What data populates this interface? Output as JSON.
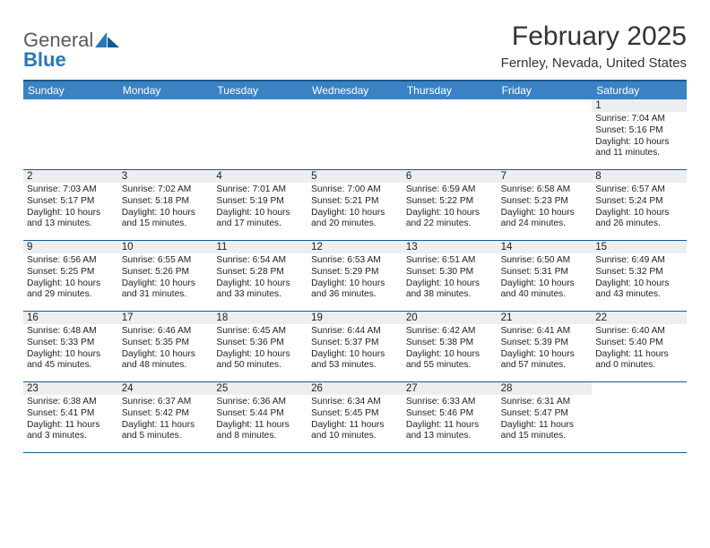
{
  "brand": {
    "name_part1": "General",
    "name_part2": "Blue"
  },
  "header": {
    "month_title": "February 2025",
    "location": "Fernley, Nevada, United States"
  },
  "colors": {
    "header_bar": "#3b82c4",
    "header_border": "#1a5a8e",
    "daynum_bg": "#eceeef",
    "text": "#222222",
    "brand_gray": "#5b5b5b",
    "brand_blue": "#2a77b8",
    "background": "#ffffff"
  },
  "weekdays": [
    "Sunday",
    "Monday",
    "Tuesday",
    "Wednesday",
    "Thursday",
    "Friday",
    "Saturday"
  ],
  "calendar": {
    "type": "table",
    "weeks": [
      [
        {
          "day": null
        },
        {
          "day": null
        },
        {
          "day": null
        },
        {
          "day": null
        },
        {
          "day": null
        },
        {
          "day": null
        },
        {
          "day": 1,
          "sunrise": "7:04 AM",
          "sunset": "5:16 PM",
          "daylight": "10 hours and 11 minutes."
        }
      ],
      [
        {
          "day": 2,
          "sunrise": "7:03 AM",
          "sunset": "5:17 PM",
          "daylight": "10 hours and 13 minutes."
        },
        {
          "day": 3,
          "sunrise": "7:02 AM",
          "sunset": "5:18 PM",
          "daylight": "10 hours and 15 minutes."
        },
        {
          "day": 4,
          "sunrise": "7:01 AM",
          "sunset": "5:19 PM",
          "daylight": "10 hours and 17 minutes."
        },
        {
          "day": 5,
          "sunrise": "7:00 AM",
          "sunset": "5:21 PM",
          "daylight": "10 hours and 20 minutes."
        },
        {
          "day": 6,
          "sunrise": "6:59 AM",
          "sunset": "5:22 PM",
          "daylight": "10 hours and 22 minutes."
        },
        {
          "day": 7,
          "sunrise": "6:58 AM",
          "sunset": "5:23 PM",
          "daylight": "10 hours and 24 minutes."
        },
        {
          "day": 8,
          "sunrise": "6:57 AM",
          "sunset": "5:24 PM",
          "daylight": "10 hours and 26 minutes."
        }
      ],
      [
        {
          "day": 9,
          "sunrise": "6:56 AM",
          "sunset": "5:25 PM",
          "daylight": "10 hours and 29 minutes."
        },
        {
          "day": 10,
          "sunrise": "6:55 AM",
          "sunset": "5:26 PM",
          "daylight": "10 hours and 31 minutes."
        },
        {
          "day": 11,
          "sunrise": "6:54 AM",
          "sunset": "5:28 PM",
          "daylight": "10 hours and 33 minutes."
        },
        {
          "day": 12,
          "sunrise": "6:53 AM",
          "sunset": "5:29 PM",
          "daylight": "10 hours and 36 minutes."
        },
        {
          "day": 13,
          "sunrise": "6:51 AM",
          "sunset": "5:30 PM",
          "daylight": "10 hours and 38 minutes."
        },
        {
          "day": 14,
          "sunrise": "6:50 AM",
          "sunset": "5:31 PM",
          "daylight": "10 hours and 40 minutes."
        },
        {
          "day": 15,
          "sunrise": "6:49 AM",
          "sunset": "5:32 PM",
          "daylight": "10 hours and 43 minutes."
        }
      ],
      [
        {
          "day": 16,
          "sunrise": "6:48 AM",
          "sunset": "5:33 PM",
          "daylight": "10 hours and 45 minutes."
        },
        {
          "day": 17,
          "sunrise": "6:46 AM",
          "sunset": "5:35 PM",
          "daylight": "10 hours and 48 minutes."
        },
        {
          "day": 18,
          "sunrise": "6:45 AM",
          "sunset": "5:36 PM",
          "daylight": "10 hours and 50 minutes."
        },
        {
          "day": 19,
          "sunrise": "6:44 AM",
          "sunset": "5:37 PM",
          "daylight": "10 hours and 53 minutes."
        },
        {
          "day": 20,
          "sunrise": "6:42 AM",
          "sunset": "5:38 PM",
          "daylight": "10 hours and 55 minutes."
        },
        {
          "day": 21,
          "sunrise": "6:41 AM",
          "sunset": "5:39 PM",
          "daylight": "10 hours and 57 minutes."
        },
        {
          "day": 22,
          "sunrise": "6:40 AM",
          "sunset": "5:40 PM",
          "daylight": "11 hours and 0 minutes."
        }
      ],
      [
        {
          "day": 23,
          "sunrise": "6:38 AM",
          "sunset": "5:41 PM",
          "daylight": "11 hours and 3 minutes."
        },
        {
          "day": 24,
          "sunrise": "6:37 AM",
          "sunset": "5:42 PM",
          "daylight": "11 hours and 5 minutes."
        },
        {
          "day": 25,
          "sunrise": "6:36 AM",
          "sunset": "5:44 PM",
          "daylight": "11 hours and 8 minutes."
        },
        {
          "day": 26,
          "sunrise": "6:34 AM",
          "sunset": "5:45 PM",
          "daylight": "11 hours and 10 minutes."
        },
        {
          "day": 27,
          "sunrise": "6:33 AM",
          "sunset": "5:46 PM",
          "daylight": "11 hours and 13 minutes."
        },
        {
          "day": 28,
          "sunrise": "6:31 AM",
          "sunset": "5:47 PM",
          "daylight": "11 hours and 15 minutes."
        },
        {
          "day": null
        }
      ]
    ]
  },
  "labels": {
    "sunrise_prefix": "Sunrise: ",
    "sunset_prefix": "Sunset: ",
    "daylight_prefix": "Daylight: "
  }
}
